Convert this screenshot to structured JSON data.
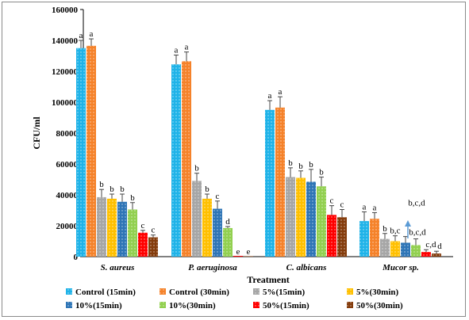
{
  "chart_data": {
    "type": "bar",
    "xlabel": "Treatment",
    "ylabel": "CFU/ml",
    "ylim": [
      0,
      160000
    ],
    "yticks": [
      "0",
      "20000",
      "40000",
      "60000",
      "80000",
      "100000",
      "120000",
      "140000",
      "160000"
    ],
    "grid": false,
    "legend_position": "bottom",
    "categories": [
      "S. aureus",
      "P. aeruginosa",
      "C. albicans",
      "Mucor sp."
    ],
    "series": [
      {
        "name": "Control (15min)",
        "color": "#1fb3e8",
        "values": [
          135000,
          124500,
          95000,
          23000
        ],
        "errors": [
          5000,
          6000,
          6000,
          6000
        ],
        "labels": [
          "a",
          "a",
          "a",
          "a"
        ]
      },
      {
        "name": "Control (30min)",
        "color": "#f5822a",
        "values": [
          136500,
          126500,
          96500,
          24500
        ],
        "errors": [
          4500,
          6000,
          7000,
          4000
        ],
        "labels": [
          "a",
          "a",
          "a",
          "a"
        ]
      },
      {
        "name": "5%(15min)",
        "color": "#a6a6a6",
        "values": [
          38500,
          49000,
          51500,
          11500
        ],
        "errors": [
          5000,
          5000,
          6000,
          3500
        ],
        "labels": [
          "b",
          "b",
          "b",
          "b"
        ]
      },
      {
        "name": "5%(30min)",
        "color": "#ffc000",
        "values": [
          37500,
          37500,
          51000,
          10000
        ],
        "errors": [
          3000,
          3000,
          4500,
          3500
        ],
        "labels": [
          "b",
          "b",
          "b",
          "b,c"
        ]
      },
      {
        "name": "10%(15min)",
        "color": "#2e75b6",
        "values": [
          35500,
          31000,
          48500,
          9000
        ],
        "errors": [
          5000,
          5000,
          8000,
          4000
        ],
        "labels": [
          "b",
          "c",
          "b",
          "b,c,d"
        ]
      },
      {
        "name": "10%(30min)",
        "color": "#92d050",
        "values": [
          30500,
          18500,
          45500,
          7500
        ],
        "errors": [
          4500,
          1000,
          6000,
          4000
        ],
        "labels": [
          "b",
          "d",
          "b",
          "b,c,d"
        ]
      },
      {
        "name": "50%(15min)",
        "color": "#ff0000",
        "values": [
          15500,
          500,
          27000,
          3000
        ],
        "errors": [
          1500,
          0,
          6000,
          1500
        ],
        "labels": [
          "c",
          "e",
          "c",
          "c,d"
        ]
      },
      {
        "name": "50%(30min)",
        "color": "#843c0c",
        "values": [
          12500,
          300,
          25500,
          2000
        ],
        "errors": [
          1500,
          0,
          5000,
          1500
        ],
        "labels": [
          "c",
          "e",
          "c",
          "d"
        ]
      }
    ]
  }
}
